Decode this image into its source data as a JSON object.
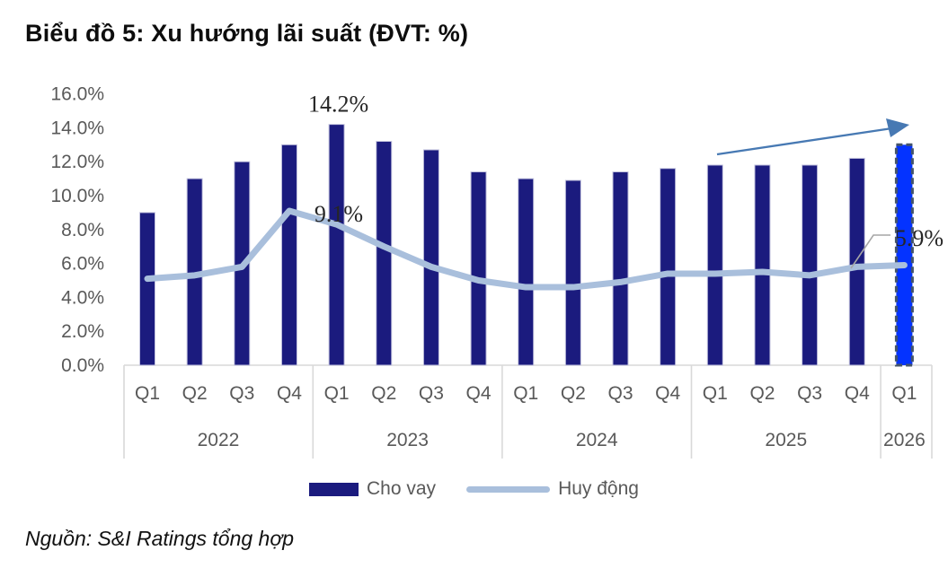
{
  "title": "Biểu đồ 5: Xu hướng lãi suất (ĐVT: %)",
  "source": "Nguồn: S&I Ratings tổng hợp",
  "legend": [
    {
      "label": "Cho vay",
      "swatch": "bar-swatch",
      "color": "#1b1b7e"
    },
    {
      "label": "Huy động",
      "swatch": "line-swatch",
      "color": "#a9bfdc"
    }
  ],
  "colors": {
    "bar": "#1b1b7e",
    "bar_edge": "#c3c3de",
    "forecast_bar_fill": "#0433ff",
    "forecast_bar_dash": "#44546a",
    "line": "#a9bfdc",
    "axis_text": "#595959",
    "axis_line": "#d9d9d9",
    "annotation_text": "#262626",
    "leader_line": "#a6a6a6",
    "trend_arrow": "#4779b3",
    "title_text": "#0d0d0d"
  },
  "chart_data": {
    "type": "bar",
    "subtype": "bar-with-line-overlay",
    "title": "Biểu đồ 5: Xu hướng lãi suất (ĐVT: %)",
    "unit": "%",
    "grid": "off",
    "legend_position": "bottom",
    "y_axis": {
      "min": 0,
      "max": 16,
      "step": 2,
      "tick_labels": [
        "0.0%",
        "2.0%",
        "4.0%",
        "6.0%",
        "8.0%",
        "10.0%",
        "12.0%",
        "14.0%",
        "16.0%"
      ]
    },
    "year_groups": [
      {
        "year": "2022",
        "quarters": [
          "Q1",
          "Q2",
          "Q3",
          "Q4"
        ]
      },
      {
        "year": "2023",
        "quarters": [
          "Q1",
          "Q2",
          "Q3",
          "Q4"
        ]
      },
      {
        "year": "2024",
        "quarters": [
          "Q1",
          "Q2",
          "Q3",
          "Q4"
        ]
      },
      {
        "year": "2025",
        "quarters": [
          "Q1",
          "Q2",
          "Q3",
          "Q4"
        ]
      },
      {
        "year": "2026",
        "quarters": [
          "Q1"
        ]
      }
    ],
    "categories": [
      "Q1 2022",
      "Q2 2022",
      "Q3 2022",
      "Q4 2022",
      "Q1 2023",
      "Q2 2023",
      "Q3 2023",
      "Q4 2023",
      "Q1 2024",
      "Q2 2024",
      "Q3 2024",
      "Q4 2024",
      "Q1 2025",
      "Q2 2025",
      "Q3 2025",
      "Q4 2025",
      "Q1 2026"
    ],
    "series": [
      {
        "name": "Cho vay",
        "type": "bar",
        "values": [
          9.0,
          11.0,
          12.0,
          13.0,
          14.2,
          13.2,
          12.7,
          11.4,
          11.0,
          10.9,
          11.4,
          11.6,
          11.8,
          11.8,
          11.8,
          12.2,
          13.0
        ],
        "forecast_last_point": true
      },
      {
        "name": "Huy động",
        "type": "line",
        "values": [
          5.1,
          5.3,
          5.8,
          9.1,
          8.3,
          7.0,
          5.8,
          5.0,
          4.6,
          4.6,
          4.9,
          5.4,
          5.4,
          5.5,
          5.3,
          5.8,
          5.9
        ]
      }
    ],
    "annotations": [
      {
        "text": "14.2%",
        "target": "bar-peak",
        "series": "Cho vay",
        "index": 4
      },
      {
        "text": "9.1%",
        "target": "line-peak",
        "series": "Huy động",
        "index": 3
      },
      {
        "text": "5.9%",
        "target": "line-end",
        "series": "Huy động",
        "index": 16
      }
    ],
    "trend_arrow": {
      "present": true,
      "direction": "up-right",
      "span": "2025-2026"
    }
  }
}
